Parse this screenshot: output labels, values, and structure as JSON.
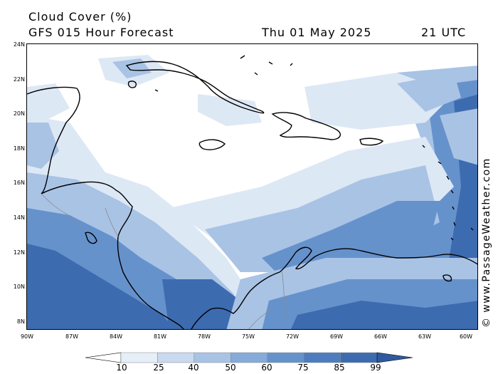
{
  "header": {
    "title": "Cloud Cover (%)",
    "subtitle": "GFS 015 Hour Forecast",
    "date": "Thu 01 May 2025",
    "time": "21 UTC"
  },
  "credit": "© www.PassageWeather.com",
  "axes": {
    "latitudes": [
      "24N",
      "22N",
      "20N",
      "18N",
      "16N",
      "14N",
      "12N",
      "10N",
      "8N"
    ],
    "longitudes": [
      "90W",
      "87W",
      "84W",
      "81W",
      "78W",
      "75W",
      "72W",
      "69W",
      "66W",
      "63W",
      "60W"
    ]
  },
  "legend": {
    "ticks": [
      "10",
      "25",
      "40",
      "50",
      "60",
      "75",
      "85",
      "99"
    ],
    "colors": [
      "#ffffff",
      "#e6eef8",
      "#c9d9ef",
      "#a9c3e5",
      "#86aad9",
      "#6692cc",
      "#4d7cbf",
      "#3d6bb0",
      "#2f5aa0"
    ]
  },
  "map_colors": {
    "clear": "#ffffff",
    "low": "#dde8f5",
    "medium": "#a9c3e5",
    "high": "#6692cc",
    "very_high": "#3d6bb0",
    "coast": "#000000",
    "border": "#8a8a8a"
  }
}
